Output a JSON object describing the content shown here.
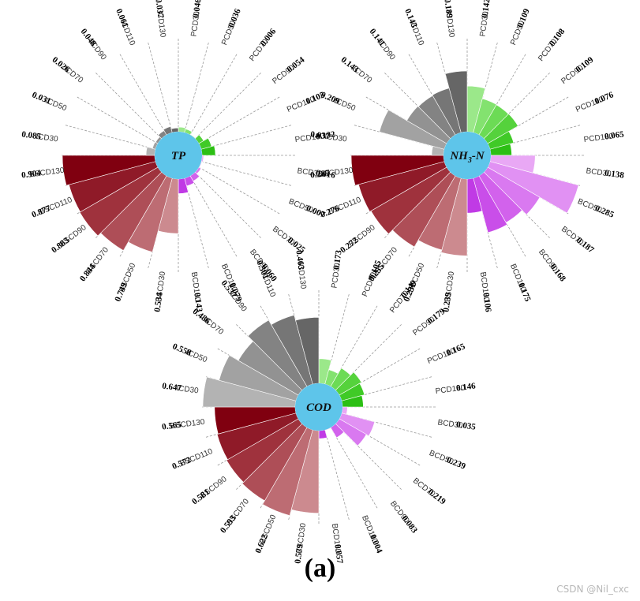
{
  "figure": {
    "caption": "(a)",
    "watermark": "CSDN @Nil_cxc"
  },
  "colors": {
    "hub": "#5ec5ea",
    "ICD30": "#b3b3b3",
    "ICD50": "#a2a2a2",
    "ICD70": "#929292",
    "ICD90": "#838383",
    "ICD110": "#767676",
    "ICD130": "#666666",
    "PCD30": "#9be88a",
    "PCD50": "#83e26f",
    "PCD70": "#6cdb55",
    "PCD90": "#55d23c",
    "PCD110": "#40ca27",
    "PCD130": "#2cbf14",
    "BCD30": "#e9a8f5",
    "BCD50": "#e191f3",
    "BCD70": "#d979f0",
    "BCD90": "#d262ec",
    "BCD110": "#c94ee9",
    "BCD130": "#c03ae5",
    "BSCD30": "#cc8a8f",
    "BSCD50": "#bd6c73",
    "BSCD70": "#ae4e57",
    "BSCD90": "#9f323d",
    "BSCD110": "#8f1a28",
    "BSCD130": "#800010"
  },
  "chart_data": [
    {
      "type": "radial-bar",
      "title": "TP",
      "title_italic": true,
      "title_sub": "",
      "categories": [
        "PCD30",
        "PCD50",
        "PCD70",
        "PCD90",
        "PCD110",
        "PCD130",
        "BCD30",
        "BCD50",
        "BCD70",
        "BCD90",
        "BCD110",
        "BCD130",
        "BSCD30",
        "BSCD50",
        "BSCD70",
        "BSCD90",
        "BSCD110",
        "BSCD130",
        "ICD30",
        "ICD50",
        "ICD70",
        "ICD90",
        "ICD110",
        "ICD130"
      ],
      "values": [
        0.046,
        0.036,
        0.006,
        0.054,
        0.105,
        0.132,
        0.016,
        0.007,
        0.025,
        0.06,
        0.079,
        0.143,
        0.534,
        0.749,
        0.844,
        0.883,
        0.877,
        0.904,
        0.085,
        0.031,
        0.026,
        0.048,
        0.061,
        0.037
      ],
      "value_labels": [
        "0.046",
        "0.036",
        "0.006",
        "0.054",
        "0.105",
        "0.132",
        "0.016",
        "0.007",
        "0.025",
        "0.060",
        "0.079",
        "0.143",
        "0.534",
        "0.749",
        "0.844",
        "0.883",
        "0.877",
        "0.904",
        "0.085",
        "0.031",
        "0.026",
        "0.048",
        "0.061",
        "0.037"
      ],
      "rmax": 0.904
    },
    {
      "type": "radial-bar",
      "title": "NH",
      "title_italic": true,
      "title_sub": "3",
      "title_suffix": "-N",
      "categories": [
        "PCD30",
        "PCD50",
        "PCD70",
        "PCD90",
        "PCD110",
        "PCD130",
        "BCD30",
        "BCD50",
        "BCD70",
        "BCD90",
        "BCD110",
        "BCD130",
        "BSCD30",
        "BSCD50",
        "BSCD70",
        "BSCD90",
        "BSCD110",
        "BSCD130",
        "ICD30",
        "ICD50",
        "ICD70",
        "ICD90",
        "ICD110",
        "ICD130"
      ],
      "values": [
        0.142,
        0.109,
        0.108,
        0.109,
        0.076,
        0.065,
        0.138,
        0.285,
        0.187,
        0.168,
        0.175,
        0.106,
        0.239,
        0.231,
        0.255,
        0.272,
        0.276,
        0.287,
        0.037,
        0.209,
        0.143,
        0.141,
        0.143,
        0.189
      ],
      "value_labels": [
        "0.142",
        "0.109",
        "0.108",
        "0.109",
        "0.076",
        "0.065",
        "0.138",
        "0.285",
        "0.187",
        "0.168",
        "0.175",
        "0.106",
        "0.239",
        "0.231",
        "0.255",
        "0.272",
        "0.276",
        "0.287",
        "0.037",
        "0.209",
        "0.143",
        "0.141",
        "0.143",
        "0.189"
      ],
      "rmax": 0.287
    },
    {
      "type": "radial-bar",
      "title": "COD",
      "title_italic": true,
      "title_sub": "",
      "categories": [
        "PCD30",
        "PCD50",
        "PCD70",
        "PCD90",
        "PCD110",
        "PCD130",
        "BCD30",
        "BCD50",
        "BCD70",
        "BCD90",
        "BCD110",
        "BCD130",
        "BSCD30",
        "BSCD50",
        "BSCD70",
        "BSCD90",
        "BSCD110",
        "BSCD130",
        "ICD30",
        "ICD50",
        "ICD70",
        "ICD90",
        "ICD110",
        "ICD130"
      ],
      "values": [
        0.173,
        0.105,
        0.149,
        0.179,
        0.165,
        0.146,
        0.035,
        0.239,
        0.219,
        0.083,
        0.004,
        0.057,
        0.579,
        0.622,
        0.593,
        0.581,
        0.572,
        0.565,
        0.647,
        0.558,
        0.486,
        0.537,
        0.501,
        0.463
      ],
      "value_labels": [
        "0.173",
        "0.105",
        "0.149",
        "0.179",
        "0.165",
        "0.146",
        "0.035",
        "0.239",
        "0.219",
        "0.083",
        "0.004",
        "0.057",
        "0.579",
        "0.622",
        "0.593",
        "0.581",
        "0.572",
        "0.565",
        "0.647",
        "0.558",
        "0.486",
        "0.537",
        "0.501",
        "0.463"
      ],
      "rmax": 0.647
    }
  ]
}
